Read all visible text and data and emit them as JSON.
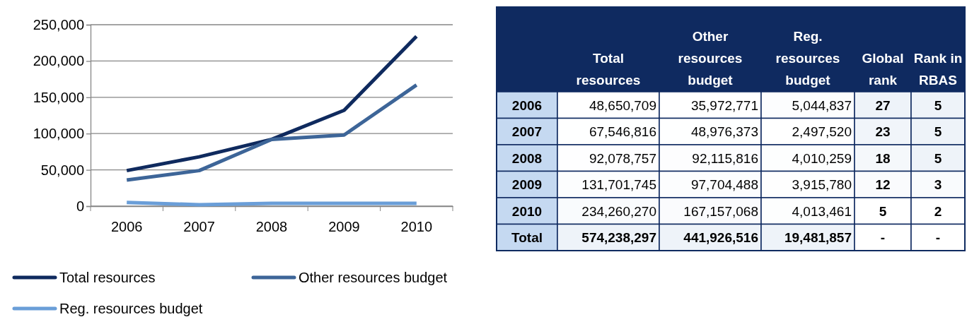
{
  "chart_data": [
    {
      "type": "line",
      "categories": [
        "2006",
        "2007",
        "2008",
        "2009",
        "2010"
      ],
      "series": [
        {
          "name": "Total resources",
          "color": "#0f2a5e",
          "values": [
            49000,
            68000,
            92000,
            132000,
            234000
          ]
        },
        {
          "name": "Other resources budget",
          "color": "#3d6598",
          "values": [
            36000,
            49000,
            92000,
            98000,
            167000
          ]
        },
        {
          "name": "Reg. resources budget",
          "color": "#6a9ed8",
          "values": [
            5000,
            2000,
            4000,
            4000,
            4000
          ]
        }
      ],
      "ylim": [
        0,
        250000
      ],
      "yticks": [
        {
          "value": 0,
          "label": "0"
        },
        {
          "value": 50000,
          "label": "50,000"
        },
        {
          "value": 100000,
          "label": "100,000"
        },
        {
          "value": 150000,
          "label": "150,000"
        },
        {
          "value": 200000,
          "label": "200,000"
        },
        {
          "value": 250000,
          "label": "250,000"
        }
      ],
      "grid": "y",
      "legend": "bottom",
      "marker": "none",
      "line_style": "solid"
    },
    {
      "type": "heatmap",
      "categories": [
        "Total resources",
        "Other resources budget",
        "Reg. resources budget",
        "Global rank",
        "Rank in RBAS"
      ],
      "y_categories": [
        "2006",
        "2007",
        "2008",
        "2009",
        "2010",
        "Total"
      ],
      "cells": [
        [
          48650709,
          35972771,
          5044837,
          27,
          5
        ],
        [
          67546816,
          48976373,
          2497520,
          23,
          5
        ],
        [
          92078757,
          92115816,
          4010259,
          18,
          5
        ],
        [
          131701745,
          97704488,
          3915780,
          12,
          3
        ],
        [
          234260270,
          167157068,
          4013461,
          5,
          2
        ],
        [
          574238297,
          441926516,
          19481857,
          null,
          null
        ]
      ],
      "cell_labels": [
        [
          "48,650,709",
          "35,972,771",
          "5,044,837",
          "27",
          "5"
        ],
        [
          "67,546,816",
          "48,976,373",
          "2,497,520",
          "23",
          "5"
        ],
        [
          "92,078,757",
          "92,115,816",
          "4,010,259",
          "18",
          "5"
        ],
        [
          "131,701,745",
          "97,704,488",
          "3,915,780",
          "12",
          "3"
        ],
        [
          "234,260,270",
          "167,157,068",
          "4,013,461",
          "5",
          "2"
        ],
        [
          "574,238,297",
          "441,926,516",
          "19,481,857",
          "-",
          "-"
        ]
      ]
    }
  ]
}
